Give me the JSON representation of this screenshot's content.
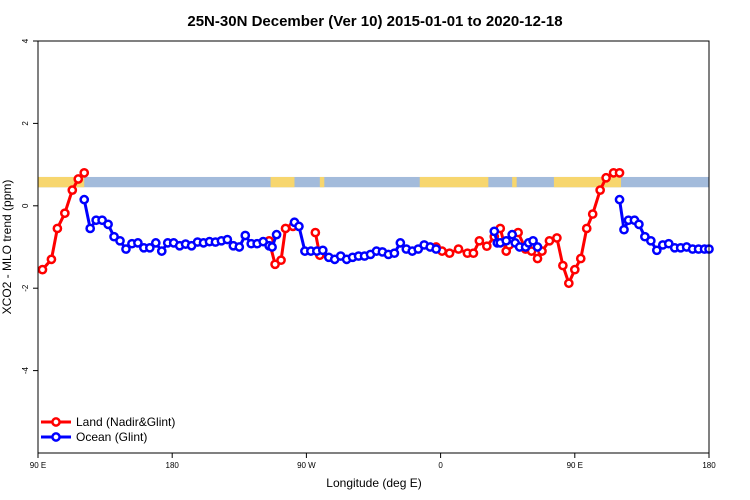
{
  "chart_data": {
    "type": "line",
    "title": "25N-30N December (Ver 10)   2015-01-01 to 2020-12-18",
    "xlabel": "Longitude (deg E)",
    "ylabel": "XCO2 - MLO trend (ppm)",
    "xlim": [
      90,
      540
    ],
    "ylim": [
      -6,
      4
    ],
    "x_ticks": [
      {
        "value": 90,
        "label": "90 E"
      },
      {
        "value": 180,
        "label": "180"
      },
      {
        "value": 270,
        "label": "90 W"
      },
      {
        "value": 360,
        "label": "0"
      },
      {
        "value": 450,
        "label": "90 E"
      },
      {
        "value": 540,
        "label": "180"
      }
    ],
    "y_ticks": [
      {
        "value": 4,
        "label": "4"
      },
      {
        "value": 2,
        "label": "2"
      },
      {
        "value": 0,
        "label": "0"
      },
      {
        "value": -2,
        "label": "-2"
      },
      {
        "value": -4,
        "label": "-4"
      }
    ],
    "grid": false,
    "legend_position": "bottom-left",
    "land_ocean_band": {
      "y_range": [
        0.45,
        0.7
      ],
      "ocean_color": "#a3bbdb",
      "land_color": "#f7d66e",
      "land_segments": [
        [
          90,
          121
        ],
        [
          246,
          262
        ],
        [
          279,
          282
        ],
        [
          346,
          392
        ],
        [
          408,
          411
        ],
        [
          436,
          481
        ]
      ]
    },
    "series": [
      {
        "name": "Land (Nadir&Glint)",
        "color": "#ff0000",
        "segments": [
          {
            "x": [
              93,
              99,
              103,
              108,
              113,
              117,
              121
            ],
            "y": [
              -1.55,
              -1.3,
              -0.55,
              -0.18,
              0.38,
              0.65,
              0.8
            ]
          },
          {
            "x": [
              245,
              249,
              253,
              256,
              261
            ],
            "y": [
              -0.85,
              -1.42,
              -1.32,
              -0.55,
              -0.5
            ]
          },
          {
            "x": [
              276,
              279
            ],
            "y": [
              -0.65,
              -1.2
            ]
          },
          {
            "x": [
              357,
              361,
              366,
              372,
              378,
              382,
              386,
              391,
              396,
              400,
              404,
              406
            ],
            "y": [
              -1.0,
              -1.1,
              -1.15,
              -1.05,
              -1.15,
              -1.15,
              -0.85,
              -0.98,
              -0.75,
              -0.55,
              -1.1,
              -0.95
            ]
          },
          {
            "x": [
              412,
              417,
              421,
              425,
              428,
              433,
              438,
              442,
              446,
              450,
              454,
              458,
              462,
              467,
              471,
              476,
              480
            ],
            "y": [
              -0.65,
              -1.05,
              -1.1,
              -1.28,
              -1.1,
              -0.85,
              -0.78,
              -1.45,
              -1.88,
              -1.55,
              -1.28,
              -0.55,
              -0.2,
              0.38,
              0.68,
              0.8,
              0.8
            ]
          }
        ]
      },
      {
        "name": "Ocean (Glint)",
        "color": "#0000ff",
        "segments": [
          {
            "x": [
              121,
              125,
              129,
              133,
              137,
              141,
              145,
              149,
              153,
              157,
              161,
              165,
              169,
              173,
              177,
              181,
              185,
              189,
              193,
              197,
              201,
              205,
              209,
              213,
              217,
              221,
              225,
              229,
              233,
              237,
              241,
              245,
              247,
              250
            ],
            "y": [
              0.15,
              -0.55,
              -0.35,
              -0.35,
              -0.45,
              -0.75,
              -0.85,
              -1.05,
              -0.92,
              -0.9,
              -1.02,
              -1.02,
              -0.9,
              -1.1,
              -0.9,
              -0.9,
              -0.97,
              -0.93,
              -0.97,
              -0.88,
              -0.9,
              -0.87,
              -0.88,
              -0.85,
              -0.82,
              -0.97,
              -1.0,
              -0.72,
              -0.92,
              -0.92,
              -0.87,
              -0.97,
              -1.0,
              -0.7
            ]
          },
          {
            "x": [
              262,
              265,
              269,
              273,
              277,
              281,
              285,
              289,
              293,
              297,
              301,
              305,
              309,
              313,
              317,
              321,
              325,
              329,
              333,
              337,
              341,
              345,
              349,
              353,
              357
            ],
            "y": [
              -0.4,
              -0.5,
              -1.1,
              -1.1,
              -1.1,
              -1.08,
              -1.25,
              -1.3,
              -1.22,
              -1.3,
              -1.25,
              -1.22,
              -1.22,
              -1.18,
              -1.1,
              -1.12,
              -1.18,
              -1.15,
              -0.9,
              -1.05,
              -1.1,
              -1.05,
              -0.95,
              -1.0,
              -1.05
            ]
          },
          {
            "x": [
              396,
              398,
              400,
              404,
              408,
              410,
              413,
              417,
              419,
              422,
              425
            ],
            "y": [
              -0.62,
              -0.9,
              -0.9,
              -0.85,
              -0.7,
              -0.9,
              -1.0,
              -1.0,
              -0.9,
              -0.85,
              -1.0
            ]
          },
          {
            "x": [
              480,
              483,
              486,
              490,
              493,
              497,
              501,
              505,
              509,
              513,
              517,
              521,
              525,
              529,
              533,
              537,
              540
            ],
            "y": [
              0.15,
              -0.58,
              -0.35,
              -0.35,
              -0.45,
              -0.75,
              -0.85,
              -1.08,
              -0.95,
              -0.92,
              -1.02,
              -1.02,
              -1.0,
              -1.05,
              -1.05,
              -1.05,
              -1.05
            ]
          }
        ]
      }
    ]
  }
}
